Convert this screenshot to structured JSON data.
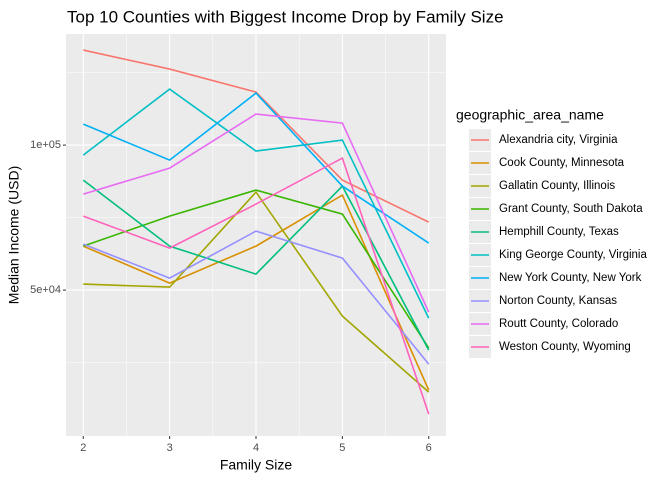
{
  "chart_data": {
    "type": "line",
    "title": "Top 10 Counties with Biggest Income Drop by Family Size",
    "x_label": "Family Size",
    "y_label": "Median Income (USD)",
    "legend_title": "geographic_area_name",
    "legend_position": "right",
    "x": [
      2,
      3,
      4,
      5,
      6
    ],
    "xlim": [
      1.8,
      6.2
    ],
    "xticks": [
      2,
      3,
      4,
      5,
      6
    ],
    "x_minor_ticks": [
      2.5,
      3.5,
      4.5,
      5.5
    ],
    "ylim": [
      -300,
      138300
    ],
    "yticks": [
      {
        "value": 50000,
        "label": "5e+04"
      },
      {
        "value": 100000,
        "label": "1e+05"
      }
    ],
    "y_minor_ticks": [
      25000,
      75000,
      125000
    ],
    "grid": true,
    "series": [
      {
        "name": "Alexandria city, Virginia",
        "color": "#F8766D",
        "values": [
          132759,
          126207,
          118276,
          87931,
          73448
        ]
      },
      {
        "name": "Cook County, Minnesota",
        "color": "#D89000",
        "values": [
          65172,
          52414,
          65172,
          82759,
          15517
        ]
      },
      {
        "name": "Gallatin County, Illinois",
        "color": "#A3A500",
        "values": [
          52069,
          51034,
          83793,
          41034,
          14828
        ]
      },
      {
        "name": "Grant County, South Dakota",
        "color": "#39B600",
        "values": [
          65172,
          75517,
          84483,
          76207,
          30000
        ]
      },
      {
        "name": "Hemphill County, Texas",
        "color": "#00BF7D",
        "values": [
          87931,
          65172,
          55517,
          85862,
          29310
        ]
      },
      {
        "name": "King George County, Virginia",
        "color": "#00BFC4",
        "values": [
          96552,
          119310,
          97931,
          101724,
          40345
        ]
      },
      {
        "name": "New York County, New York",
        "color": "#00B0F6",
        "values": [
          107241,
          94828,
          117931,
          85862,
          66207
        ]
      },
      {
        "name": "Norton County, Kansas",
        "color": "#9590FF",
        "values": [
          65862,
          54138,
          70345,
          61034,
          24483
        ]
      },
      {
        "name": "Routt County, Colorado",
        "color": "#E76BF3",
        "values": [
          83103,
          92069,
          110690,
          107586,
          42414
        ]
      },
      {
        "name": "Weston County, Wyoming",
        "color": "#FF62BC",
        "values": [
          75517,
          64483,
          79655,
          95517,
          7241
        ]
      }
    ]
  }
}
